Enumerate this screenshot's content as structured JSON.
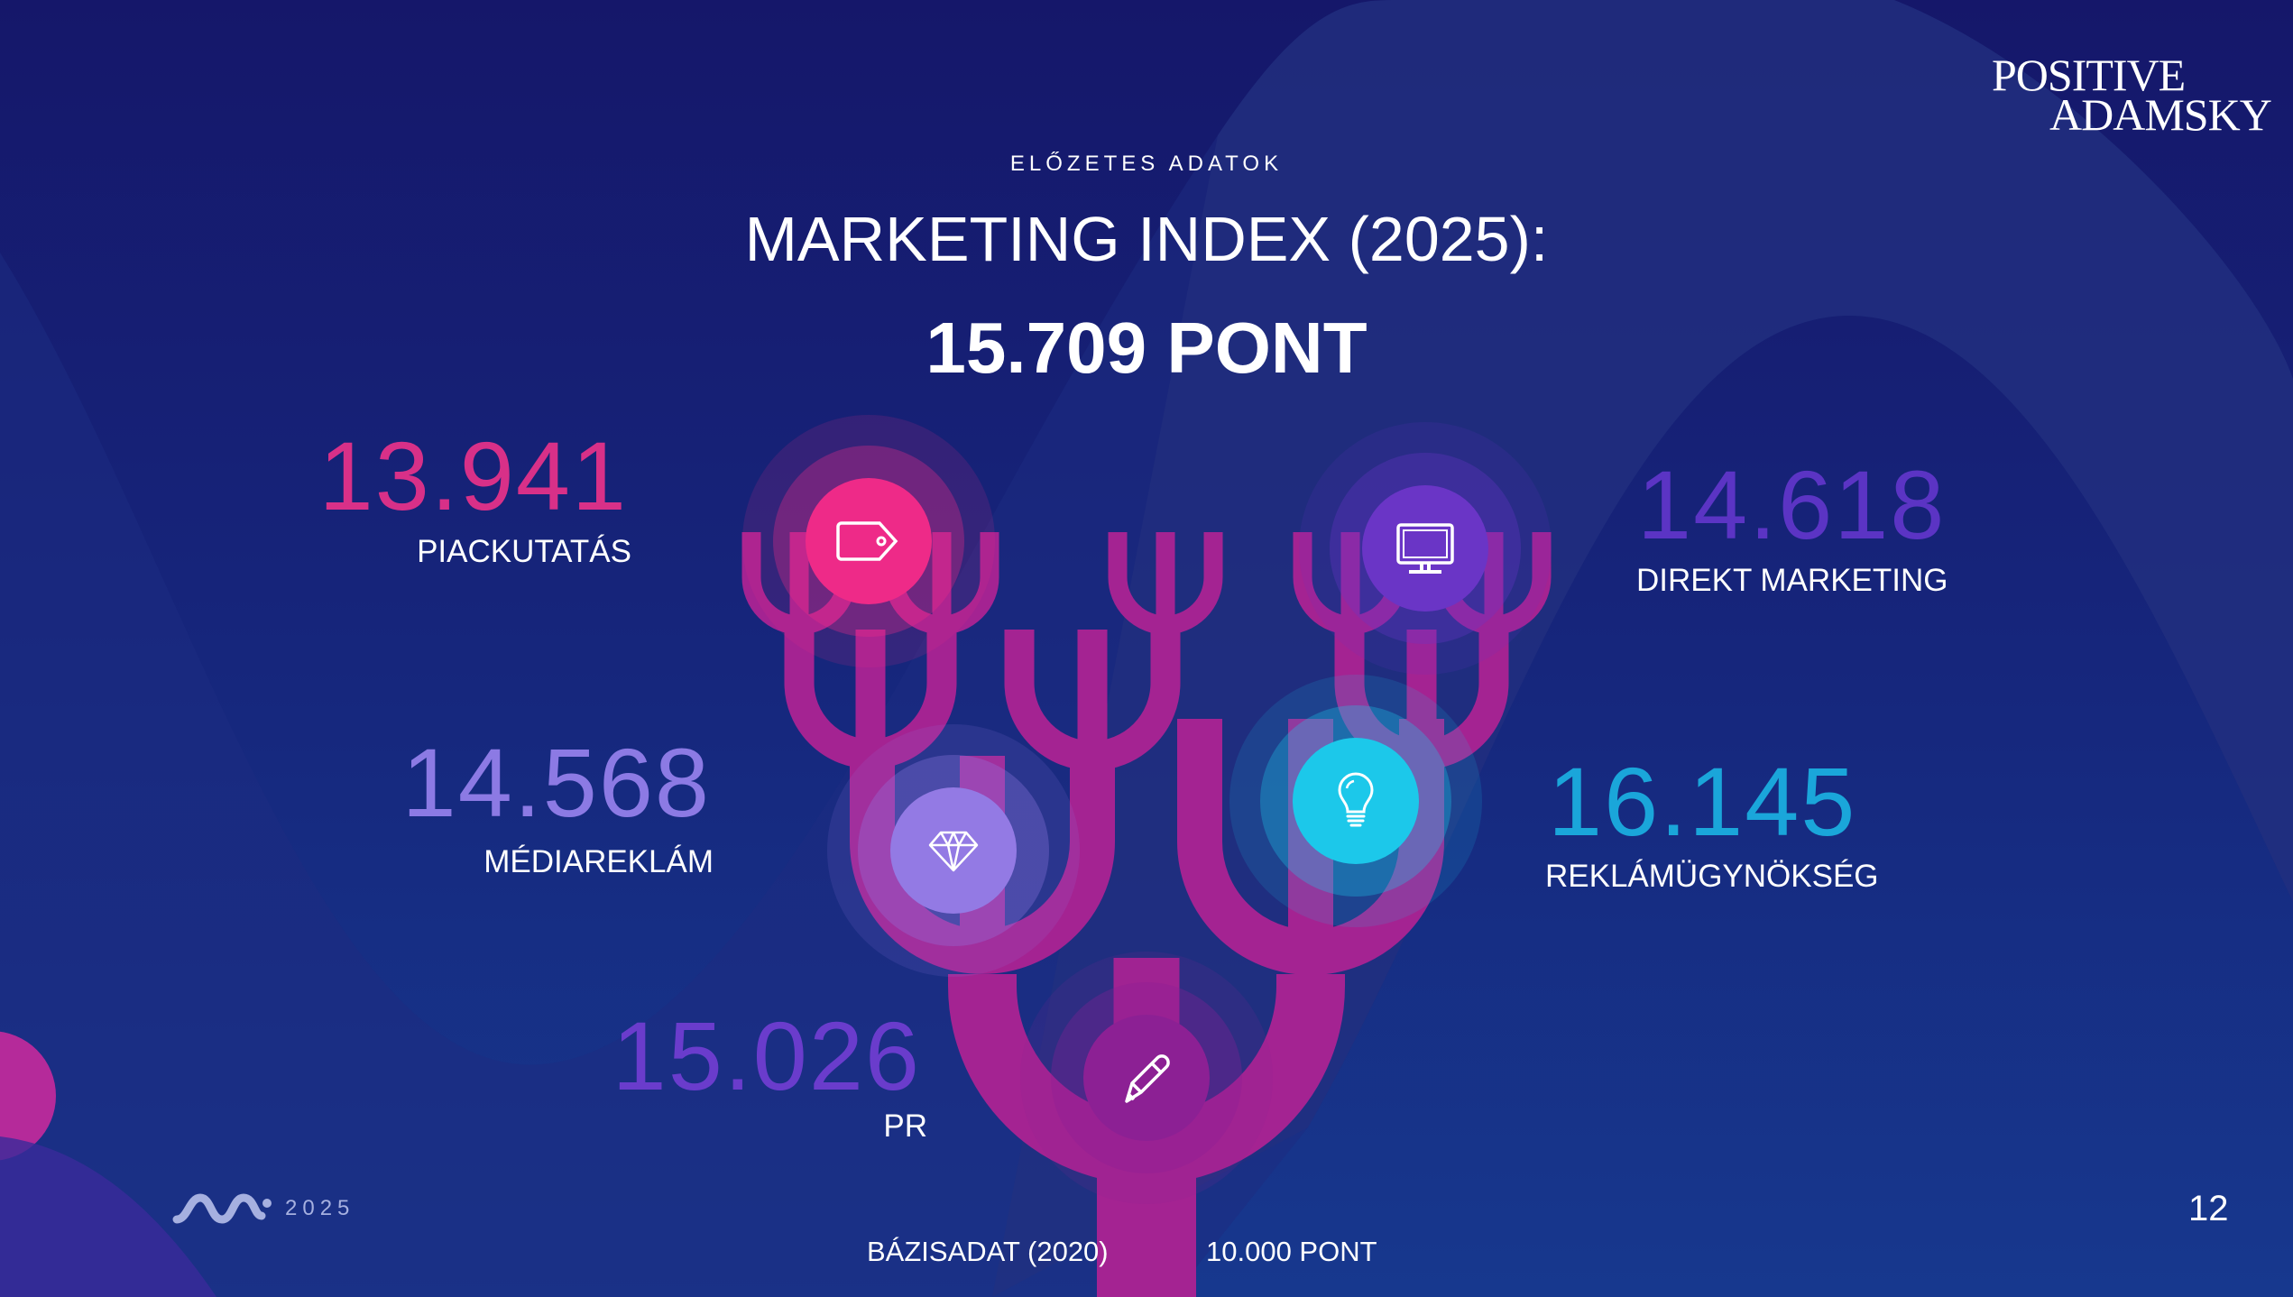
{
  "header": {
    "kicker": "ELŐZETES ADATOK",
    "title": "MARKETING INDEX (2025):",
    "total": "15.709 PONT"
  },
  "brand": {
    "logo_line1": "POSITIVE",
    "logo_line2": "ADAMSKY"
  },
  "segments": [
    {
      "value": "13.941",
      "label": "PIACKUTATÁS",
      "icon": "price-tag-icon",
      "color": "#e0308a",
      "circle_color": "#ee2a88"
    },
    {
      "value": "14.618",
      "label": "DIREKT MARKETING",
      "icon": "monitor-icon",
      "color": "#5b34c4",
      "circle_color": "#6a35c6"
    },
    {
      "value": "14.568",
      "label": "MÉDIAREKLÁM",
      "icon": "diamond-icon",
      "color": "#8c7ae4",
      "circle_color": "#937ae4"
    },
    {
      "value": "16.145",
      "label": "REKLÁMÜGYNÖKSÉG",
      "icon": "lightbulb-icon",
      "color": "#1aa6da",
      "circle_color": "#1cc8ea"
    },
    {
      "value": "15.026",
      "label": "PR",
      "icon": "pencil-icon",
      "color": "#6a3ccc",
      "circle_color": "#8c2094"
    }
  ],
  "base": {
    "label": "BÁZISADAT (2020)",
    "value": "10.000 PONT"
  },
  "footer": {
    "year": "2025",
    "page_number": "12"
  },
  "colors": {
    "tree_top": "#ea2a8a",
    "tree_bottom": "#a42392",
    "background": "#16247a"
  }
}
